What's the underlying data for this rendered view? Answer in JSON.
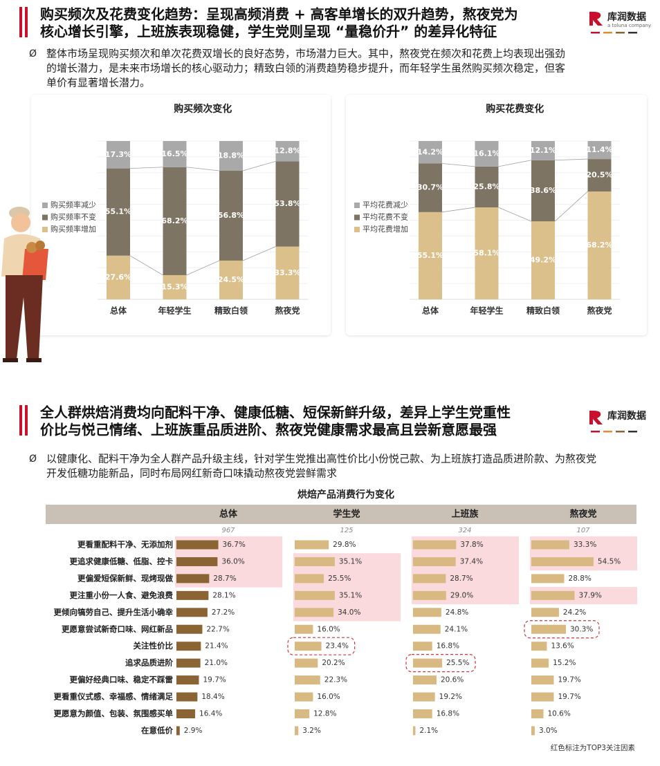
{
  "logo": {
    "name": "库润数据",
    "tagline": "a toluna company"
  },
  "section1": {
    "title_lines": [
      "购买频次及花费变化趋势：呈现高频消费 + 高客单增长的双升趋势，熬夜党为",
      "核心增长引擎，上班族表现稳健，学生党则呈现 “量稳价升” 的差异化特征"
    ],
    "bullet": "Ø",
    "summary_lines": [
      "整体市场呈现购买频次和单次花费双增长的良好态势，市场潜力巨大。其中，熬夜党在频次和花费上均表现出强劲",
      "的增长潜力，是未来市场增长的核心驱动力；精致白领的消费趋势稳步提升，而年轻学生虽然购买频次稳定，但客",
      "单价有显著增长潜力。"
    ]
  },
  "section2": {
    "title_lines": [
      "全人群烘焙消费均向配料干净、健康低糖、短保新鲜升级，差异上学生党重性",
      "价比与悦己情绪、上班族重品质进阶、熬夜党健康需求最高且尝新意愿最强"
    ],
    "bullet": "Ø",
    "summary_lines": [
      "以健康化、配料干净为全人群产品升级主线，针对学生党推出高性价比小份悦己款、为上班族打造品质进阶款、为熬夜党",
      "开发低糖功能新品，同时布局网红新奇口味撬动熬夜党尝鲜需求"
    ]
  },
  "chart_data": [
    {
      "type": "stacked",
      "title": "购买频次变化",
      "categories": [
        "总体",
        "年轻学生",
        "精致白领",
        "熬夜党"
      ],
      "series": [
        {
          "name": "购买频率增加",
          "color": "#dcc08c",
          "values": [
            27.6,
            15.3,
            24.5,
            33.3
          ],
          "value_labels": [
            "27.6%",
            "15.3%",
            "24.5%",
            "33.3%"
          ]
        },
        {
          "name": "购买频率不变",
          "color": "#7e7463",
          "values": [
            55.1,
            68.2,
            56.8,
            53.8
          ],
          "value_labels": [
            "55.1%",
            "68.2%",
            "56.8%",
            "53.8%"
          ]
        },
        {
          "name": "购买频率减少",
          "color": "#a9a9a9",
          "values": [
            17.3,
            16.5,
            18.8,
            12.8
          ],
          "value_labels": [
            "17.3%",
            "16.5%",
            "18.8%",
            "12.8%"
          ]
        }
      ]
    },
    {
      "type": "stacked",
      "title": "购买花费变化",
      "categories": [
        "总体",
        "年轻学生",
        "精致白领",
        "熬夜党"
      ],
      "series": [
        {
          "name": "平均花费增加",
          "color": "#dcc08c",
          "values": [
            55.1,
            58.1,
            49.2,
            68.2
          ],
          "value_labels": [
            "55.1%",
            "58.1%",
            "49.2%",
            "68.2%"
          ]
        },
        {
          "name": "平均花费不变",
          "color": "#7e7463",
          "values": [
            30.7,
            25.8,
            38.6,
            20.5
          ],
          "value_labels": [
            "30.7%",
            "25.8%",
            "38.6%",
            "20.5%"
          ]
        },
        {
          "name": "平均花费减少",
          "color": "#a9a9a9",
          "values": [
            14.2,
            16.1,
            12.1,
            11.4
          ],
          "value_labels": [
            "14.2%",
            "16.1%",
            "12.1%",
            "11.4%"
          ]
        }
      ]
    },
    {
      "type": "grid-bar",
      "title": "烘焙产品消费行为变化",
      "categories": [
        "更看重配料干净、无添加剂",
        "更追求健康低糖、低脂、控卡",
        "更偏爱短保新鲜、现烤现做",
        "更注重小份一人食、避免浪费",
        "更倾向犒劳自己、提升生活小确幸",
        "更愿意尝试新奇口味、网红新品",
        "关注性价比",
        "追求品质进阶",
        "更偏好经典口味、稳定不踩雷",
        "更看重仪式感、幸福感、情绪满足",
        "更愿意为颜值、包装、氛围感买单",
        "在意低价"
      ],
      "highlight_color": "#fbdadd",
      "circle_color": "#d0343a",
      "series": [
        {
          "name": "总体",
          "count": 967,
          "color": "#8a6432",
          "values": [
            36.7,
            36.0,
            28.7,
            28.1,
            27.2,
            22.7,
            21.4,
            21.0,
            19.7,
            18.4,
            16.4,
            2.9
          ],
          "value_labels": [
            "36.7%",
            "36.0%",
            "28.7%",
            "28.1%",
            "27.2%",
            "22.7%",
            "21.4%",
            "21.0%",
            "19.7%",
            "18.4%",
            "16.4%",
            "2.9%"
          ],
          "highlight": [
            0,
            1,
            2
          ],
          "circled": []
        },
        {
          "name": "学生党",
          "count": 125,
          "color": "#d9b982",
          "values": [
            29.8,
            35.1,
            25.5,
            35.1,
            34.0,
            16.0,
            23.4,
            20.2,
            22.3,
            16.0,
            12.8,
            3.2
          ],
          "value_labels": [
            "29.8%",
            "35.1%",
            "25.5%",
            "35.1%",
            "34.0%",
            "16.0%",
            "23.4%",
            "20.2%",
            "22.3%",
            "16.0%",
            "12.8%",
            "3.2%"
          ],
          "highlight": [
            1,
            2,
            3,
            4
          ],
          "circled": [
            6
          ]
        },
        {
          "name": "上班族",
          "count": 324,
          "color": "#d9b982",
          "values": [
            37.8,
            37.4,
            28.7,
            29.0,
            24.8,
            24.1,
            16.8,
            25.5,
            20.6,
            19.2,
            16.8,
            2.1
          ],
          "value_labels": [
            "37.8%",
            "37.4%",
            "28.7%",
            "29.0%",
            "24.8%",
            "24.1%",
            "16.8%",
            "25.5%",
            "20.6%",
            "19.2%",
            "16.8%",
            "2.1%"
          ],
          "highlight": [
            0,
            1,
            2,
            3
          ],
          "circled": [
            7
          ]
        },
        {
          "name": "熬夜党",
          "count": 107,
          "color": "#d9b982",
          "values": [
            33.3,
            54.5,
            28.8,
            37.9,
            24.2,
            30.3,
            13.6,
            15.2,
            19.7,
            19.7,
            10.6,
            3.0
          ],
          "value_labels": [
            "33.3%",
            "54.5%",
            "28.8%",
            "37.9%",
            "24.2%",
            "30.3%",
            "13.6%",
            "15.2%",
            "19.7%",
            "19.7%",
            "10.6%",
            "3.0%"
          ],
          "highlight": [
            0,
            1,
            3
          ],
          "circled": [
            5
          ]
        }
      ],
      "note": "红色标注为TOP3关注因素"
    }
  ]
}
